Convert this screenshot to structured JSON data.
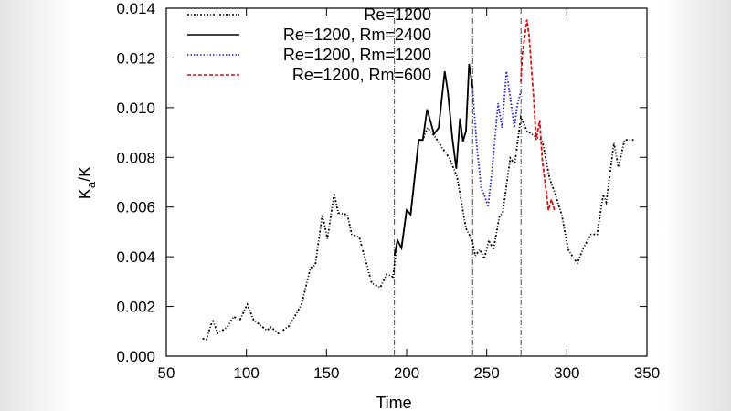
{
  "chart_data": {
    "type": "line",
    "xlabel": "Time",
    "ylabel_main": "K",
    "ylabel_sub": "a",
    "ylabel_tail": "/K",
    "xlim": [
      50,
      350
    ],
    "ylim": [
      0,
      0.014
    ],
    "xticks": [
      "50",
      "100",
      "150",
      "200",
      "250",
      "300",
      "350"
    ],
    "xtick_values": [
      50,
      100,
      150,
      200,
      250,
      300,
      350
    ],
    "yticks": [
      "0.000",
      "0.002",
      "0.004",
      "0.006",
      "0.008",
      "0.010",
      "0.012",
      "0.014"
    ],
    "ytick_values": [
      0,
      0.002,
      0.004,
      0.006,
      0.008,
      0.01,
      0.012,
      0.014
    ],
    "grid": false,
    "legend_position": "top-left",
    "vertical_lines": [
      192.4,
      241.2,
      271.4
    ],
    "series": [
      {
        "name": "Re=1200",
        "color": "#000000",
        "style": "dash-dot",
        "x": [
          72.6,
          75,
          79,
          82,
          88,
          92,
          96,
          100.6,
          104.4,
          112.6,
          115.4,
          120,
          126.8,
          134.4,
          140,
          143,
          147.4,
          150.6,
          154.8,
          157.3,
          163,
          165.8,
          170.5,
          178.2,
          183.5,
          187.6,
          191.5,
          194.3,
          196.8,
          200,
          202.5,
          207.6,
          210.1,
          213,
          218,
          222,
          226.7,
          231.4,
          237,
          241,
          242.8,
          245.7,
          248.5,
          251.4,
          254.2,
          258,
          260,
          264.7,
          267.5,
          271.3,
          275.1,
          280.8,
          284.6,
          289.4,
          292.3,
          297,
          300.8,
          306.5,
          310.3,
          315.1,
          318.9,
          322.7,
          324.6,
          329.4,
          332.2,
          336,
          341.7
        ],
        "y": [
          0.00071,
          0.00067,
          0.00147,
          0.00092,
          0.00116,
          0.00159,
          0.00147,
          0.00208,
          0.00147,
          0.00104,
          0.00116,
          0.00092,
          0.00122,
          0.00208,
          0.00355,
          0.00367,
          0.0057,
          0.00472,
          0.00655,
          0.00576,
          0.0057,
          0.0049,
          0.00478,
          0.00294,
          0.00276,
          0.0033,
          0.00319,
          0.00466,
          0.00435,
          0.00588,
          0.0057,
          0.0087,
          0.0087,
          0.0092,
          0.0088,
          0.0084,
          0.00797,
          0.00723,
          0.00515,
          0.00466,
          0.00404,
          0.00429,
          0.00392,
          0.00466,
          0.00429,
          0.00564,
          0.00576,
          0.00797,
          0.00772,
          0.00962,
          0.00907,
          0.00882,
          0.0087,
          0.00711,
          0.00662,
          0.00564,
          0.00429,
          0.00374,
          0.00435,
          0.0049,
          0.0049,
          0.0065,
          0.00619,
          0.00858,
          0.0076,
          0.0087,
          0.0087
        ]
      },
      {
        "name": "Re=1200, Rm=2400",
        "color": "#000000",
        "style": "solid",
        "x": [
          192.4,
          194.3,
          196.8,
          200,
          202.5,
          207.6,
          210.1,
          212.8,
          217.1,
          220,
          223.8,
          225.7,
          228.6,
          231,
          233.3,
          235.2,
          237.1,
          239,
          241.3
        ],
        "y": [
          0.00404,
          0.00466,
          0.00435,
          0.00588,
          0.0057,
          0.0087,
          0.0087,
          0.00993,
          0.00894,
          0.00919,
          0.01146,
          0.01066,
          0.00876,
          0.00754,
          0.00956,
          0.00864,
          0.00907,
          0.01176,
          0.01078
        ]
      },
      {
        "name": "Re=1200, Rm=1200",
        "color": "#1f1fd0",
        "style": "dotted",
        "x": [
          241.3,
          243.8,
          246.6,
          248.5,
          250.8,
          253.3,
          257.1,
          259.6,
          262.3,
          264.7,
          267.2,
          269.1,
          271.3
        ],
        "y": [
          0.01066,
          0.00846,
          0.00674,
          0.0065,
          0.006,
          0.00747,
          0.01017,
          0.00919,
          0.01146,
          0.01042,
          0.00919,
          0.01011,
          0.01066
        ]
      },
      {
        "name": "Re=1200, Rm=600",
        "color": "#d01010",
        "style": "dashed",
        "x": [
          271.3,
          272.2,
          275.1,
          276.5,
          279.3,
          280.8,
          283.1,
          284.6,
          288.5,
          290.4,
          292.3
        ],
        "y": [
          0.01103,
          0.01213,
          0.01354,
          0.01287,
          0.01042,
          0.0087,
          0.0095,
          0.00797,
          0.00588,
          0.00631,
          0.00588
        ]
      }
    ]
  }
}
